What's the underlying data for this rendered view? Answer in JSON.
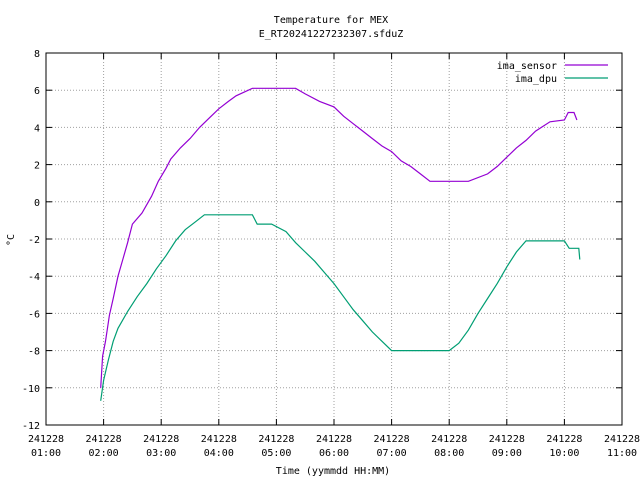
{
  "chart_data": {
    "type": "line",
    "title": "Temperature for MEX",
    "subtitle": "E_RT20241227232307.sfduZ",
    "xlabel": "Time (yymmdd HH:MM)",
    "ylabel": "°C",
    "ylim": [
      -12,
      8
    ],
    "yticks": [
      "-12",
      "-10",
      "-8",
      "-6",
      "-4",
      "-2",
      "0",
      "2",
      "4",
      "6",
      "8"
    ],
    "xlim": [
      "241228 01:00",
      "241228 11:00"
    ],
    "xticks": [
      {
        "date": "241228",
        "time": "01:00"
      },
      {
        "date": "241228",
        "time": "02:00"
      },
      {
        "date": "241228",
        "time": "03:00"
      },
      {
        "date": "241228",
        "time": "04:00"
      },
      {
        "date": "241228",
        "time": "05:00"
      },
      {
        "date": "241228",
        "time": "06:00"
      },
      {
        "date": "241228",
        "time": "07:00"
      },
      {
        "date": "241228",
        "time": "08:00"
      },
      {
        "date": "241228",
        "time": "09:00"
      },
      {
        "date": "241228",
        "time": "10:00"
      },
      {
        "date": "241228",
        "time": "11:00"
      }
    ],
    "grid": true,
    "legend_position": "top-right",
    "series": [
      {
        "name": "ima_sensor",
        "color": "#9400d3",
        "points": [
          [
            "01:57",
            -10.0
          ],
          [
            "01:59",
            -8.3
          ],
          [
            "02:02",
            -7.5
          ],
          [
            "02:06",
            -6.1
          ],
          [
            "02:10",
            -5.2
          ],
          [
            "02:15",
            -4.0
          ],
          [
            "02:20",
            -3.1
          ],
          [
            "02:25",
            -2.2
          ],
          [
            "02:30",
            -1.2
          ],
          [
            "02:40",
            -0.6
          ],
          [
            "02:50",
            0.3
          ],
          [
            "02:57",
            1.1
          ],
          [
            "03:05",
            1.8
          ],
          [
            "03:10",
            2.3
          ],
          [
            "03:20",
            2.9
          ],
          [
            "03:30",
            3.4
          ],
          [
            "03:40",
            4.0
          ],
          [
            "03:50",
            4.5
          ],
          [
            "04:00",
            5.0
          ],
          [
            "04:10",
            5.4
          ],
          [
            "04:18",
            5.7
          ],
          [
            "04:35",
            6.1
          ],
          [
            "05:20",
            6.1
          ],
          [
            "05:30",
            5.8
          ],
          [
            "05:45",
            5.4
          ],
          [
            "06:00",
            5.1
          ],
          [
            "06:10",
            4.6
          ],
          [
            "06:20",
            4.2
          ],
          [
            "06:30",
            3.8
          ],
          [
            "06:40",
            3.4
          ],
          [
            "06:50",
            3.0
          ],
          [
            "07:00",
            2.7
          ],
          [
            "07:10",
            2.2
          ],
          [
            "07:20",
            1.9
          ],
          [
            "07:30",
            1.5
          ],
          [
            "07:40",
            1.1
          ],
          [
            "08:00",
            1.1
          ],
          [
            "08:20",
            1.1
          ],
          [
            "08:40",
            1.5
          ],
          [
            "08:50",
            1.9
          ],
          [
            "09:00",
            2.4
          ],
          [
            "09:10",
            2.9
          ],
          [
            "09:20",
            3.3
          ],
          [
            "09:30",
            3.8
          ],
          [
            "09:45",
            4.3
          ],
          [
            "10:00",
            4.4
          ],
          [
            "10:04",
            4.8
          ],
          [
            "10:10",
            4.8
          ],
          [
            "10:13",
            4.4
          ]
        ]
      },
      {
        "name": "ima_dpu",
        "color": "#009e73",
        "points": [
          [
            "01:57",
            -10.7
          ],
          [
            "02:00",
            -9.6
          ],
          [
            "02:05",
            -8.5
          ],
          [
            "02:10",
            -7.5
          ],
          [
            "02:15",
            -6.8
          ],
          [
            "02:25",
            -5.9
          ],
          [
            "02:35",
            -5.1
          ],
          [
            "02:45",
            -4.4
          ],
          [
            "02:55",
            -3.6
          ],
          [
            "03:05",
            -2.9
          ],
          [
            "03:15",
            -2.1
          ],
          [
            "03:25",
            -1.5
          ],
          [
            "03:35",
            -1.1
          ],
          [
            "03:45",
            -0.7
          ],
          [
            "04:00",
            -0.7
          ],
          [
            "04:35",
            -0.7
          ],
          [
            "04:40",
            -1.2
          ],
          [
            "04:55",
            -1.2
          ],
          [
            "05:10",
            -1.6
          ],
          [
            "05:20",
            -2.2
          ],
          [
            "05:30",
            -2.7
          ],
          [
            "05:40",
            -3.2
          ],
          [
            "05:50",
            -3.8
          ],
          [
            "06:00",
            -4.4
          ],
          [
            "06:10",
            -5.1
          ],
          [
            "06:20",
            -5.8
          ],
          [
            "06:30",
            -6.4
          ],
          [
            "06:40",
            -7.0
          ],
          [
            "06:50",
            -7.5
          ],
          [
            "07:00",
            -8.0
          ],
          [
            "07:40",
            -8.0
          ],
          [
            "07:50",
            -8.0
          ],
          [
            "08:00",
            -8.0
          ],
          [
            "08:10",
            -7.6
          ],
          [
            "08:20",
            -6.9
          ],
          [
            "08:30",
            -6.0
          ],
          [
            "08:40",
            -5.2
          ],
          [
            "08:50",
            -4.4
          ],
          [
            "09:00",
            -3.5
          ],
          [
            "09:10",
            -2.7
          ],
          [
            "09:20",
            -2.1
          ],
          [
            "09:40",
            -2.1
          ],
          [
            "10:00",
            -2.1
          ],
          [
            "10:05",
            -2.5
          ],
          [
            "10:15",
            -2.5
          ],
          [
            "10:16",
            -3.1
          ]
        ]
      }
    ]
  }
}
